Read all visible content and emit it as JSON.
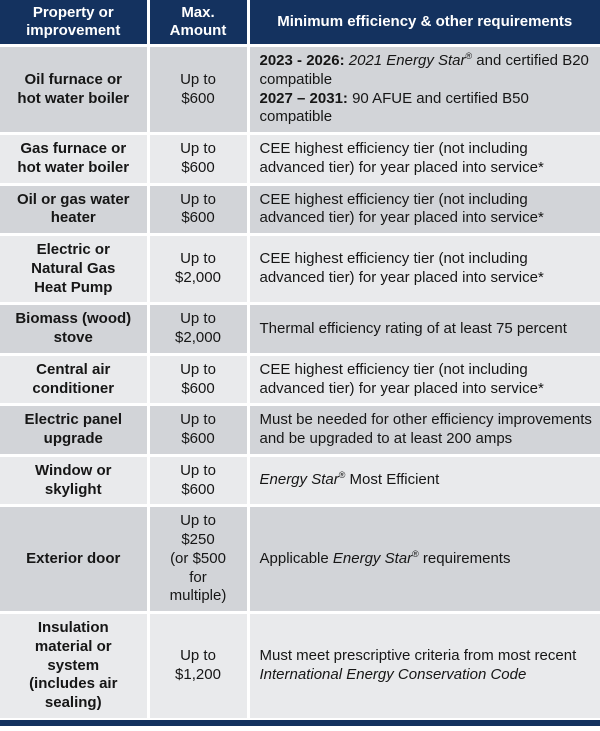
{
  "colors": {
    "header_bg": "#14325f",
    "header_text": "#ffffff",
    "row_dark": "#d2d4d8",
    "row_light": "#e9eaec",
    "separator": "#ffffff",
    "body_text": "#161616"
  },
  "table": {
    "columns": [
      "Property or improvement",
      "Max. Amount",
      "Minimum efficiency & other requirements"
    ],
    "rows": [
      {
        "property": "Oil furnace or\nhot water boiler",
        "amount": "Up to\n$600",
        "requirement": [
          {
            "t": "2023 - 2026:",
            "b": true
          },
          {
            "t": " "
          },
          {
            "t": "2021 Energy Star",
            "i": true
          },
          {
            "t": "®",
            "sup": true
          },
          {
            "t": " and certified B20 compatible"
          },
          {
            "br": true
          },
          {
            "t": "2027 – 2031:",
            "b": true
          },
          {
            "t": " 90 AFUE and certified B50 compatible"
          }
        ]
      },
      {
        "property": "Gas furnace or\nhot water boiler",
        "amount": "Up to\n$600",
        "requirement": [
          {
            "t": "CEE highest efficiency tier (not including advanced tier) for year placed into service*"
          }
        ]
      },
      {
        "property": "Oil or gas water\nheater",
        "amount": "Up to\n$600",
        "requirement": [
          {
            "t": "CEE highest efficiency tier (not including advanced tier) for year placed into service*"
          }
        ]
      },
      {
        "property": "Electric or\nNatural Gas\nHeat Pump",
        "amount": "Up to\n$2,000",
        "requirement": [
          {
            "t": "CEE highest efficiency tier (not including advanced tier) for year placed into service*"
          }
        ]
      },
      {
        "property": "Biomass (wood)\nstove",
        "amount": "Up to\n$2,000",
        "requirement": [
          {
            "t": "Thermal efficiency rating of at least 75 percent"
          }
        ]
      },
      {
        "property": "Central air\nconditioner",
        "amount": "Up to\n$600",
        "requirement": [
          {
            "t": "CEE highest efficiency tier (not including advanced tier) for year placed into service*"
          }
        ]
      },
      {
        "property": "Electric panel\nupgrade",
        "amount": "Up to\n$600",
        "requirement": [
          {
            "t": "Must be needed for other efficiency improvements and be upgraded to at least 200 amps"
          }
        ]
      },
      {
        "property": "Window or\nskylight",
        "amount": "Up to\n$600",
        "requirement": [
          {
            "t": "Energy Star",
            "i": true
          },
          {
            "t": "®",
            "sup": true
          },
          {
            "t": " Most Efficient"
          }
        ]
      },
      {
        "property": "Exterior door",
        "amount": "Up to\n$250\n(or $500\nfor\nmultiple)",
        "requirement": [
          {
            "t": "Applicable "
          },
          {
            "t": "Energy Star",
            "i": true
          },
          {
            "t": "®",
            "sup": true
          },
          {
            "t": " requirements"
          }
        ]
      },
      {
        "property": "Insulation\nmaterial or\nsystem\n(includes air\nsealing)",
        "amount": "Up to\n$1,200",
        "requirement": [
          {
            "t": "Must meet prescriptive criteria from most recent "
          },
          {
            "t": "International Energy Conservation Code",
            "i": true
          }
        ]
      }
    ]
  }
}
